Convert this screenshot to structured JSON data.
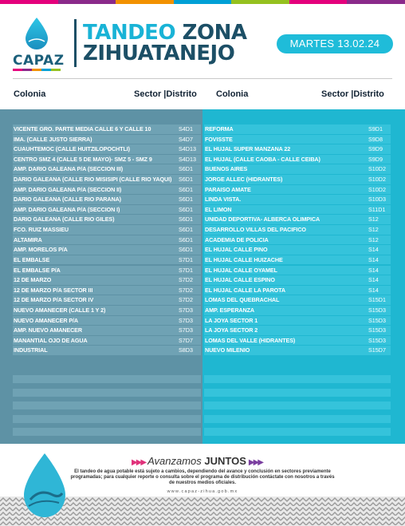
{
  "brand": {
    "name": "CAPAZ",
    "stripe_colors": [
      "#e4007c",
      "#8a2a8a",
      "#f29100",
      "#00a0d6",
      "#95c11f",
      "#e4007c",
      "#8a2a8a"
    ]
  },
  "header": {
    "title_word1": "TANDEO",
    "title_word2": "ZONA",
    "title_line2": "ZIHUATANEJO",
    "date": "MARTES 13.02.24",
    "accent_color": "#1fbcd9",
    "dark_color": "#1c4f66"
  },
  "columns": {
    "left": {
      "colonia": "Colonia",
      "sector": "Sector |Distrito"
    },
    "right": {
      "colonia": "Colonia",
      "sector": "Sector |Distrito"
    }
  },
  "left_rows": [
    {
      "colonia": "VICENTE GRO. PARTE MEDIA CALLE 6 Y CALLE 10",
      "sector": "S4D1"
    },
    {
      "colonia": "IMA. (CALLE JUSTO SIERRA)",
      "sector": "S4D7"
    },
    {
      "colonia": "CUAUHTEMOC (CALLE HUITZILOPOCHTLI)",
      "sector": "S4D13"
    },
    {
      "colonia": "CENTRO SMZ 4 (CALLE 5 DE MAYO)- SMZ 5 - SMZ 9",
      "sector": "S4D13"
    },
    {
      "colonia": "AMP. DARIO GALEANA P/A (SECCION III)",
      "sector": "S6D1"
    },
    {
      "colonia": "DARIO GALEANA (CALLE RIO MISISIPI (CALLE RIO YAQUI)",
      "sector": "S6D1"
    },
    {
      "colonia": "AMP. DARIO GALEANA P/A (SECCION II)",
      "sector": "S6D1"
    },
    {
      "colonia": "DARIO GALEANA (CALLE RIO PARANA)",
      "sector": "S6D1"
    },
    {
      "colonia": "AMP. DARIO GALEANA P/A (SECCION I)",
      "sector": "S6D1"
    },
    {
      "colonia": "DARIO GALEANA (CALLE RIO GILES)",
      "sector": "S6D1"
    },
    {
      "colonia": "FCO. RUIZ MASSIEU",
      "sector": "S6D1"
    },
    {
      "colonia": "ALTAMIRA",
      "sector": "S6D1"
    },
    {
      "colonia": "AMP. MORELOS P/A",
      "sector": "S6D1"
    },
    {
      "colonia": "EL EMBALSE",
      "sector": "S7D1"
    },
    {
      "colonia": " EL EMBALSE P/A",
      "sector": "S7D1"
    },
    {
      "colonia": "12 DE MARZO",
      "sector": "S7D2"
    },
    {
      "colonia": "12 DE MARZO P/A SECTOR III",
      "sector": "S7D2"
    },
    {
      "colonia": "12 DE MARZO P/A SECTOR IV",
      "sector": "S7D2"
    },
    {
      "colonia": "NUEVO AMANECER (CALLE 1 Y 2)",
      "sector": "S7D3"
    },
    {
      "colonia": "NUEVO AMANECER P/A",
      "sector": "S7D3"
    },
    {
      "colonia": "AMP. NUEVO AMANECER",
      "sector": "S7D3"
    },
    {
      "colonia": "MANANTIAL OJO DE AGUA",
      "sector": "S7D7"
    },
    {
      "colonia": "INDUSTRIAL",
      "sector": "S8D3"
    }
  ],
  "right_rows": [
    {
      "colonia": "REFORMA",
      "sector": "S9D1"
    },
    {
      "colonia": "FOVISSTE",
      "sector": "S9D8"
    },
    {
      "colonia": "EL HUJAL SUPER MANZANA 22",
      "sector": "S9D9"
    },
    {
      "colonia": "EL HUJAL (CALLE CAOBA - CALLE CEIBA)",
      "sector": "S9D9"
    },
    {
      "colonia": "BUENOS AIRES",
      "sector": "S10D2"
    },
    {
      "colonia": " JORGE ALLEC (HIDRANTES)",
      "sector": "S10D2"
    },
    {
      "colonia": "PARAISO AMATE",
      "sector": "S10D2"
    },
    {
      "colonia": "LINDA VISTA.",
      "sector": "S10D3"
    },
    {
      "colonia": "EL LIMON",
      "sector": "S11D1"
    },
    {
      "colonia": "UNIDAD DEPORTIVA- ALBERCA OLIMPICA",
      "sector": "S12"
    },
    {
      "colonia": "DESARROLLO VILLAS DEL PACIFICO",
      "sector": "S12"
    },
    {
      "colonia": "ACADEMIA DE POLICIA",
      "sector": "S12"
    },
    {
      "colonia": "EL HUJAL CALLE PINO",
      "sector": "S14"
    },
    {
      "colonia": "EL HUJAL CALLE HUIZACHE",
      "sector": "S14"
    },
    {
      "colonia": "EL HUJAL CALLE OYAMEL",
      "sector": "S14"
    },
    {
      "colonia": "EL HUJAL CALLE ESPINO",
      "sector": "S14"
    },
    {
      "colonia": "EL HUJAL CALLE LA PAROTA",
      "sector": "S14"
    },
    {
      "colonia": "LOMAS DEL QUEBRACHAL",
      "sector": "S15D1"
    },
    {
      "colonia": " AMP. ESPERANZA",
      "sector": "S15D3"
    },
    {
      "colonia": "LA JOYA SECTOR 1",
      "sector": "S15D3"
    },
    {
      "colonia": "LA JOYA SECTOR 2",
      "sector": "S15D3"
    },
    {
      "colonia": "LOMAS DEL VALLE  (HIDRANTES)",
      "sector": "S15D3"
    },
    {
      "colonia": "NUEVO MILENIO",
      "sector": "S15D7"
    }
  ],
  "footer": {
    "slogan_part1": "Avanzamos",
    "slogan_part2": "JUNTOS",
    "disclaimer": "El tandeo de agua potable está sujeto a cambios, dependiendo del avance y conclusión en sectores previamente programadas; para cualquier reporte o consulta sobre el programa de distribución contáctate con nosotros a través de nuestros medios oficiales.",
    "website": "www.capaz-zihua.gob.mx"
  }
}
